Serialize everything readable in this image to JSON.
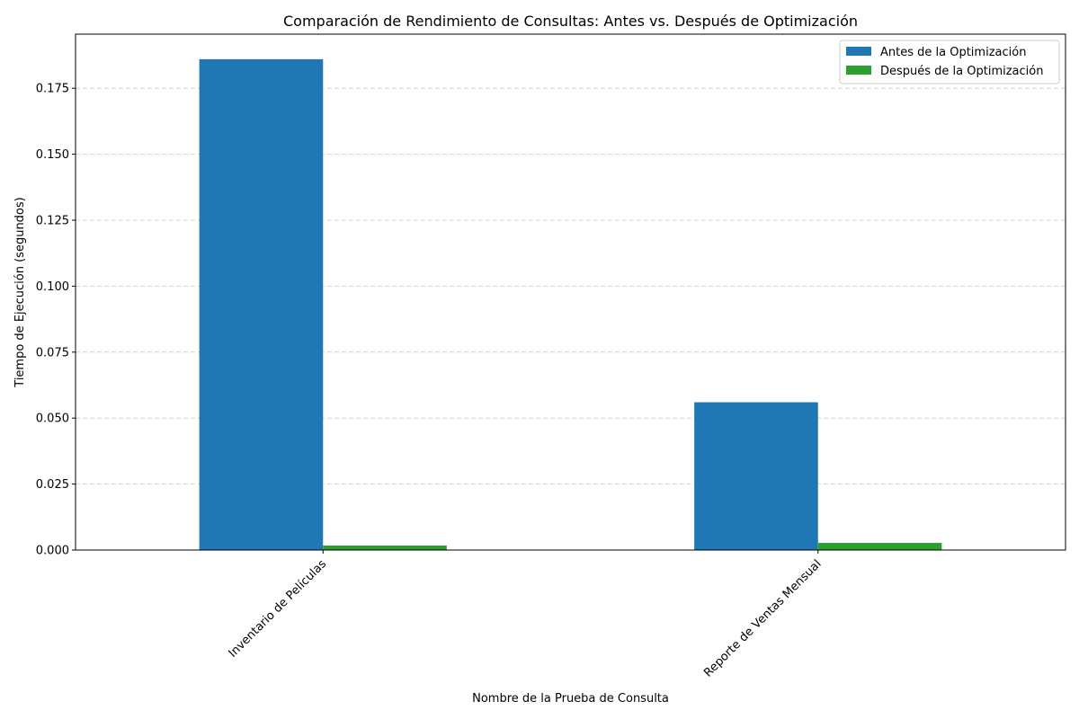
{
  "chart_data": {
    "type": "bar",
    "title": "Comparación de Rendimiento de Consultas: Antes vs. Después de Optimización",
    "xlabel": "Nombre de la Prueba de Consulta",
    "ylabel": "Tiempo de Ejecución (segundos)",
    "categories": [
      "Inventario de Películas",
      "Reporte de Ventas Mensual"
    ],
    "series": [
      {
        "name": "Antes de la Optimización",
        "values": [
          0.186,
          0.056
        ],
        "color": "#1f77b4"
      },
      {
        "name": "Después de la Optimización",
        "values": [
          0.0017,
          0.0027
        ],
        "color": "#2ca02c"
      }
    ],
    "ylim": [
      0,
      0.1955
    ],
    "yticks": [
      "0.000",
      "0.025",
      "0.050",
      "0.075",
      "0.100",
      "0.125",
      "0.150",
      "0.175"
    ],
    "grid": "y-dashed",
    "legend": "top-right"
  }
}
